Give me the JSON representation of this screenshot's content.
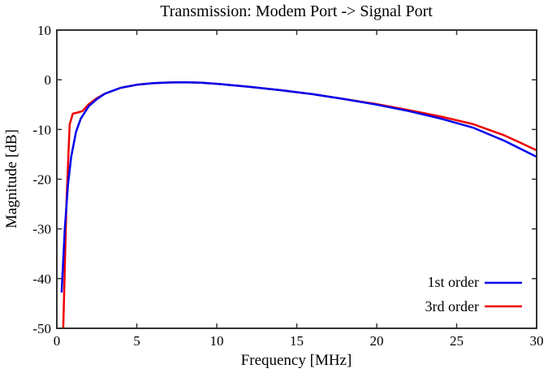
{
  "chart_data": {
    "type": "line",
    "title": "Transmission: Modem Port -> Signal Port",
    "xlabel": "Frequency [MHz]",
    "ylabel": "Magnitude [dB]",
    "xlim": [
      0,
      30
    ],
    "ylim": [
      -50,
      10
    ],
    "xticks": [
      0,
      5,
      10,
      15,
      20,
      25,
      30
    ],
    "yticks": [
      10,
      0,
      -10,
      -20,
      -30,
      -40,
      -50
    ],
    "grid": false,
    "legend_position": "lower right",
    "series": [
      {
        "name": "1st order",
        "color": "#0000ee",
        "x": [
          0.3,
          0.5,
          0.7,
          0.9,
          1.2,
          1.5,
          2.0,
          2.5,
          3.0,
          4.0,
          5.0,
          6.0,
          7.0,
          8.0,
          9.0,
          10.0,
          12.0,
          14.0,
          16.0,
          18.0,
          20.0,
          22.0,
          24.0,
          26.0,
          28.0,
          30.0
        ],
        "y": [
          -42.8,
          -30.0,
          -21.0,
          -15.5,
          -10.5,
          -7.8,
          -5.3,
          -3.9,
          -2.8,
          -1.6,
          -1.0,
          -0.7,
          -0.55,
          -0.5,
          -0.6,
          -0.8,
          -1.4,
          -2.1,
          -2.9,
          -3.9,
          -5.0,
          -6.3,
          -7.8,
          -9.6,
          -12.3,
          -15.5
        ]
      },
      {
        "name": "3rd order",
        "color": "#ee0000",
        "x": [
          0.4,
          0.5,
          0.6,
          0.8,
          1.0,
          1.3,
          1.6,
          2.0,
          2.5,
          3.0,
          4.0,
          5.0,
          6.0,
          7.0,
          8.0,
          9.0,
          10.0,
          12.0,
          14.0,
          16.0,
          18.0,
          20.0,
          22.0,
          24.0,
          26.0,
          28.0,
          30.0
        ],
        "y": [
          -50.0,
          -38.0,
          -25.0,
          -9.0,
          -6.8,
          -6.6,
          -6.3,
          -4.9,
          -3.7,
          -2.8,
          -1.6,
          -1.0,
          -0.7,
          -0.55,
          -0.5,
          -0.6,
          -0.8,
          -1.4,
          -2.1,
          -2.9,
          -3.9,
          -4.9,
          -6.1,
          -7.4,
          -8.9,
          -11.2,
          -14.2
        ]
      }
    ]
  }
}
